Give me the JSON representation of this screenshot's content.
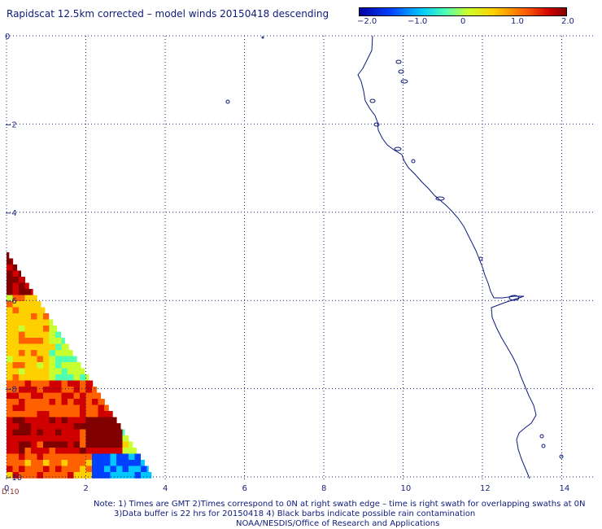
{
  "title": "Rapidscat 12.5km corrected – model winds 20150418 descending",
  "colorbar": {
    "ticks": [
      "−2.0",
      "−1.0",
      "0",
      "1.0",
      "2.0"
    ],
    "colors": [
      "#0000a0",
      "#0040ff",
      "#00c8ff",
      "#50ffb0",
      "#c8ff30",
      "#ffd000",
      "#ff6000",
      "#d00000",
      "#800000"
    ]
  },
  "axes": {
    "x_ticks": [
      "0",
      "2",
      "4",
      "6",
      "8",
      "10",
      "12",
      "14"
    ],
    "y_ticks": [
      "0",
      "−2",
      "−4",
      "−6",
      "−8",
      "−10"
    ],
    "xlim": [
      0,
      15
    ],
    "ylim": [
      -10.3,
      0
    ],
    "grid": "dotted"
  },
  "time_label": "D:10",
  "notes": {
    "line1": "Note: 1) Times are GMT 2)Times correspond to 0N at right swath edge – time is right swath for overlapping swaths at 0N",
    "line2": "3)Data buffer is 22 hrs for 20150418 4) Black barbs indicate possible rain contamination",
    "line3": "NOAA/NESDIS/Office of Research and Applications"
  }
}
